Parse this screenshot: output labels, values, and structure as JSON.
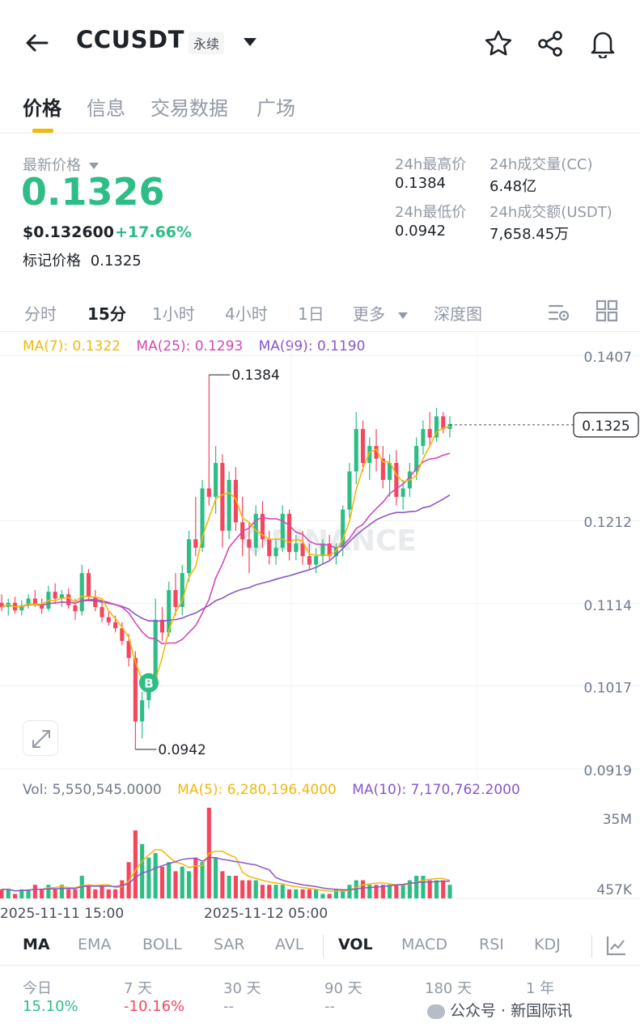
{
  "header": {
    "symbol": "CCUSDT",
    "contract_type": "永续",
    "tabs": [
      "价格",
      "信息",
      "交易数据",
      "广场"
    ]
  },
  "price": {
    "latest_label": "最新价格",
    "last": "0.1326",
    "usd": "$0.132600",
    "change": "+17.66%",
    "mark_label": "标记价格",
    "mark_value": "0.1325"
  },
  "stats": {
    "high_label": "24h最高价",
    "high": "0.1384",
    "low_label": "24h最低价",
    "low": "0.0942",
    "vol_cc_label": "24h成交量(CC)",
    "vol_cc": "6.48亿",
    "vol_usdt_label": "24h成交额(USDT)",
    "vol_usdt": "7,658.45万"
  },
  "timeframes": [
    "分时",
    "15分",
    "1小时",
    "4小时",
    "1日",
    "更多",
    "深度图"
  ],
  "active_timeframe": "15分",
  "ma_legend": {
    "ma7": "MA(7): 0.1322",
    "ma25": "MA(25): 0.1293",
    "ma99": "MA(99): 0.1190"
  },
  "vol_legend": {
    "vol": "Vol: 5,550,545.0000",
    "ma5": "MA(5): 6,280,196.4000",
    "ma10": "MA(10): 7,170,762.2000"
  },
  "indicators": [
    "MA",
    "EMA",
    "BOLL",
    "SAR",
    "AVL",
    "VOL",
    "MACD",
    "RSI",
    "KDJ"
  ],
  "performance": [
    {
      "label": "今日",
      "value": "15.10%"
    },
    {
      "label": "7 天",
      "value": "-10.16%"
    },
    {
      "label": "30 天",
      "value": "--"
    },
    {
      "label": "90 天",
      "value": "--"
    },
    {
      "label": "180 天",
      "value": ""
    },
    {
      "label": "1 年",
      "value": ""
    }
  ],
  "watermark": "公众号 · 新国际讯",
  "chart_watermark": "BINANCE",
  "colors": {
    "up": "#2ebd85",
    "down": "#f6465d",
    "ma7": "#f0b90b",
    "ma25": "#d548b5",
    "ma99": "#8a57c9",
    "accent": "#f0b90b"
  },
  "chart_data": {
    "type": "candlestick",
    "ylim": [
      0.0919,
      0.1407
    ],
    "y_ticks": [
      "0.1407",
      "0.1212",
      "0.1114",
      "0.1017",
      "0.0919"
    ],
    "high_label": "0.1384",
    "low_label": "0.0942",
    "current_label": "0.1325",
    "buy_marker": "B",
    "x_ticks": [
      "2025-11-11 15:00",
      "2025-11-12 05:00"
    ],
    "vol_ticks": [
      "35M",
      "457K"
    ],
    "candles": [
      [
        0.1115,
        0.1125,
        0.1105,
        0.111
      ],
      [
        0.111,
        0.112,
        0.11,
        0.1115
      ],
      [
        0.1115,
        0.1122,
        0.1102,
        0.1106
      ],
      [
        0.1106,
        0.1118,
        0.11,
        0.1112
      ],
      [
        0.1112,
        0.1125,
        0.1108,
        0.112
      ],
      [
        0.112,
        0.113,
        0.111,
        0.1114
      ],
      [
        0.1114,
        0.112,
        0.1102,
        0.1108
      ],
      [
        0.1108,
        0.1135,
        0.1105,
        0.1128
      ],
      [
        0.1128,
        0.1138,
        0.1115,
        0.112
      ],
      [
        0.112,
        0.113,
        0.111,
        0.1125
      ],
      [
        0.1125,
        0.1132,
        0.1108,
        0.1112
      ],
      [
        0.1112,
        0.112,
        0.1095,
        0.1105
      ],
      [
        0.1105,
        0.116,
        0.11,
        0.115
      ],
      [
        0.115,
        0.1155,
        0.1118,
        0.1122
      ],
      [
        0.1122,
        0.113,
        0.1105,
        0.111
      ],
      [
        0.111,
        0.1118,
        0.1092,
        0.1098
      ],
      [
        0.1098,
        0.1106,
        0.1088,
        0.1092
      ],
      [
        0.1092,
        0.11,
        0.108,
        0.1085
      ],
      [
        0.1085,
        0.1092,
        0.1065,
        0.107
      ],
      [
        0.107,
        0.1078,
        0.104,
        0.105
      ],
      [
        0.105,
        0.1058,
        0.0942,
        0.0975
      ],
      [
        0.0975,
        0.101,
        0.0955,
        0.1
      ],
      [
        0.1,
        0.103,
        0.099,
        0.1025
      ],
      [
        0.1025,
        0.112,
        0.102,
        0.1095
      ],
      [
        0.1095,
        0.111,
        0.107,
        0.108
      ],
      [
        0.108,
        0.114,
        0.1075,
        0.113
      ],
      [
        0.113,
        0.115,
        0.11,
        0.111
      ],
      [
        0.111,
        0.116,
        0.11,
        0.115
      ],
      [
        0.115,
        0.12,
        0.114,
        0.119
      ],
      [
        0.119,
        0.124,
        0.117,
        0.118
      ],
      [
        0.118,
        0.126,
        0.1175,
        0.125
      ],
      [
        0.125,
        0.1384,
        0.123,
        0.124
      ],
      [
        0.124,
        0.13,
        0.122,
        0.128
      ],
      [
        0.128,
        0.129,
        0.118,
        0.12
      ],
      [
        0.12,
        0.127,
        0.119,
        0.126
      ],
      [
        0.126,
        0.1275,
        0.12,
        0.121
      ],
      [
        0.121,
        0.124,
        0.117,
        0.119
      ],
      [
        0.119,
        0.121,
        0.115,
        0.118
      ],
      [
        0.118,
        0.123,
        0.117,
        0.122
      ],
      [
        0.122,
        0.1235,
        0.118,
        0.119
      ],
      [
        0.119,
        0.12,
        0.116,
        0.117
      ],
      [
        0.117,
        0.119,
        0.116,
        0.118
      ],
      [
        0.118,
        0.123,
        0.1175,
        0.122
      ],
      [
        0.122,
        0.1225,
        0.1165,
        0.1175
      ],
      [
        0.1175,
        0.1195,
        0.1165,
        0.1185
      ],
      [
        0.1185,
        0.12,
        0.116,
        0.117
      ],
      [
        0.117,
        0.1185,
        0.1155,
        0.116
      ],
      [
        0.116,
        0.118,
        0.115,
        0.117
      ],
      [
        0.117,
        0.119,
        0.116,
        0.1185
      ],
      [
        0.1185,
        0.1195,
        0.1165,
        0.117
      ],
      [
        0.117,
        0.1185,
        0.116,
        0.118
      ],
      [
        0.118,
        0.123,
        0.117,
        0.1225
      ],
      [
        0.1225,
        0.128,
        0.1215,
        0.127
      ],
      [
        0.127,
        0.134,
        0.1255,
        0.132
      ],
      [
        0.132,
        0.133,
        0.127,
        0.128
      ],
      [
        0.128,
        0.131,
        0.126,
        0.13
      ],
      [
        0.13,
        0.132,
        0.127,
        0.1285
      ],
      [
        0.1285,
        0.13,
        0.125,
        0.126
      ],
      [
        0.126,
        0.129,
        0.124,
        0.128
      ],
      [
        0.128,
        0.1295,
        0.123,
        0.124
      ],
      [
        0.124,
        0.126,
        0.1225,
        0.125
      ],
      [
        0.125,
        0.128,
        0.124,
        0.127
      ],
      [
        0.127,
        0.131,
        0.126,
        0.13
      ],
      [
        0.13,
        0.133,
        0.129,
        0.132
      ],
      [
        0.132,
        0.134,
        0.13,
        0.131
      ],
      [
        0.131,
        0.1345,
        0.1305,
        0.1335
      ],
      [
        0.1335,
        0.134,
        0.1315,
        0.132
      ],
      [
        0.132,
        0.1335,
        0.131,
        0.1326
      ]
    ],
    "volumes": [
      2,
      2,
      1,
      2,
      2,
      3,
      2,
      3,
      2,
      3,
      2,
      2,
      5,
      3,
      2,
      3,
      2,
      2,
      4,
      8,
      15,
      12,
      9,
      10,
      7,
      8,
      6,
      7,
      6,
      9,
      8,
      20,
      9,
      6,
      5,
      5,
      4,
      4,
      4,
      3,
      3,
      3,
      3,
      2,
      2,
      2,
      2,
      2,
      1,
      1,
      2,
      2,
      3,
      4,
      4,
      3,
      3,
      3,
      3,
      3,
      3,
      4,
      5,
      5,
      4,
      4,
      4,
      3
    ]
  }
}
